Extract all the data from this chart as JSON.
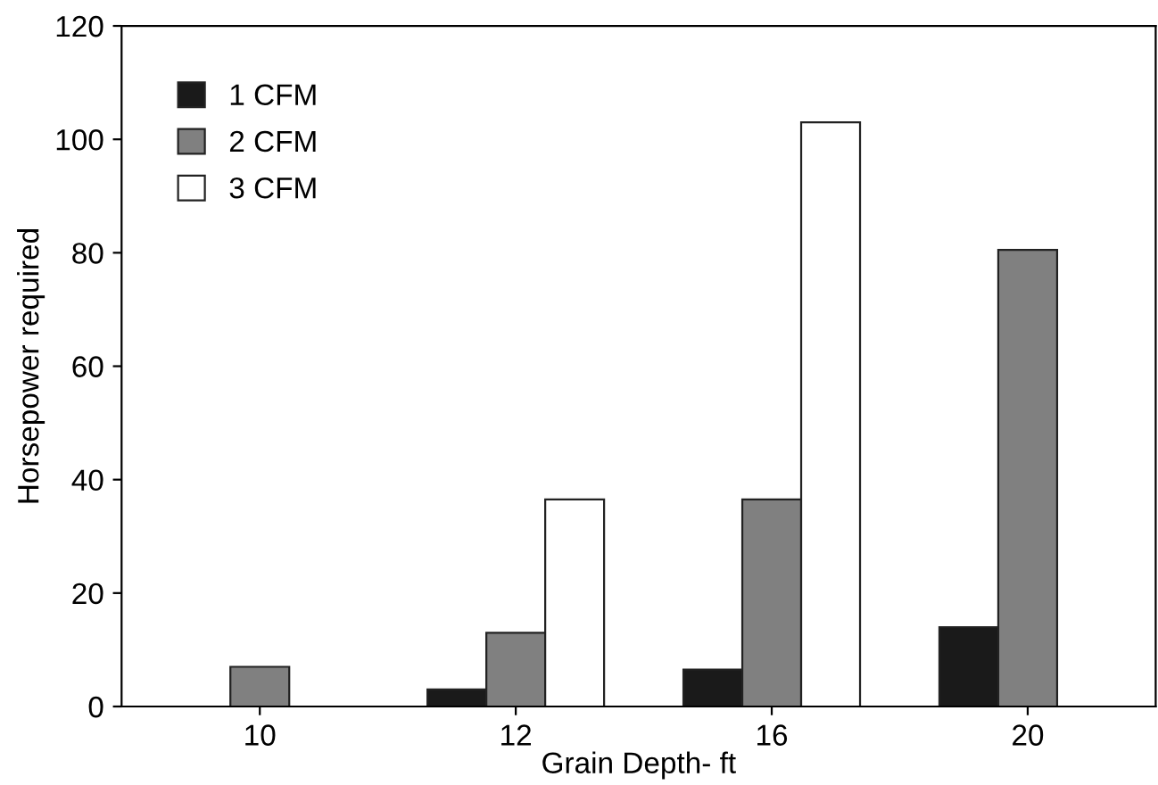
{
  "chart_data": {
    "type": "bar",
    "xlabel": "Grain Depth- ft",
    "ylabel": "Horsepower required",
    "categories": [
      "10",
      "12",
      "16",
      "20"
    ],
    "series": [
      {
        "name": "1 CFM",
        "color": "#1a1a1a",
        "values": [
          null,
          3,
          6.5,
          14
        ]
      },
      {
        "name": "2 CFM",
        "color": "#808080",
        "values": [
          7,
          13,
          36.5,
          80.5
        ]
      },
      {
        "name": "3 CFM",
        "color": "#ffffff",
        "values": [
          null,
          36.5,
          103,
          null
        ]
      }
    ],
    "ylim": [
      0,
      120
    ],
    "yticks": [
      0,
      20,
      40,
      60,
      80,
      100,
      120
    ],
    "grid": false,
    "legend": "top left"
  }
}
